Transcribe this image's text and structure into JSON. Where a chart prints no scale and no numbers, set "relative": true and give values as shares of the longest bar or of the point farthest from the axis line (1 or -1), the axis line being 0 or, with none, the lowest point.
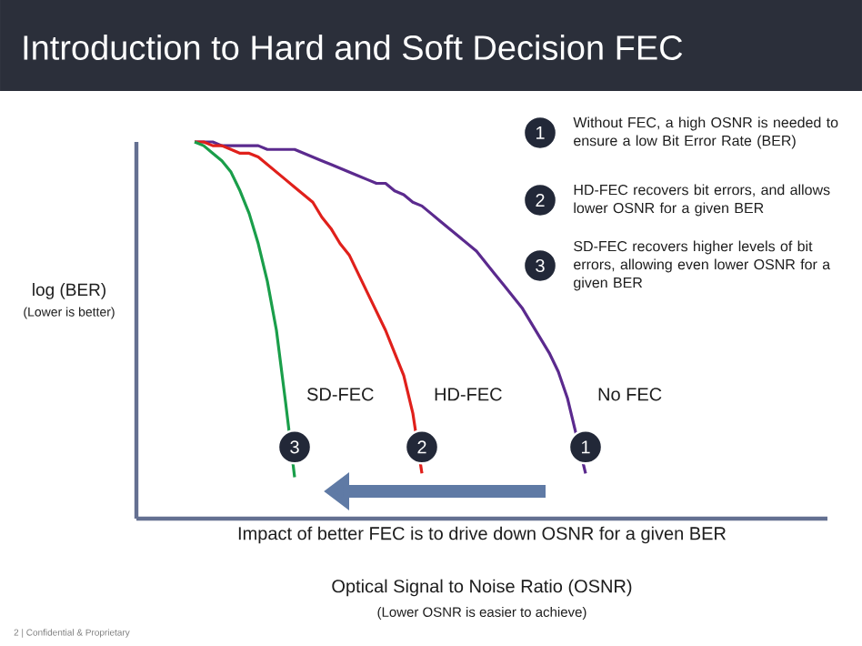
{
  "chart_data": {
    "type": "line",
    "title": "Introduction to Hard and Soft Decision FEC",
    "xlabel": "Optical Signal to Noise Ratio (OSNR)",
    "ylabel": "log (BER)",
    "relative": true,
    "categories": [
      null,
      null,
      null,
      null,
      null,
      null,
      null,
      null,
      null,
      null,
      null,
      null,
      null,
      null,
      null,
      null,
      null,
      null,
      null,
      null,
      null,
      null,
      null,
      null,
      null,
      null,
      null,
      null,
      null,
      null,
      null,
      null,
      null,
      null,
      null,
      null,
      null,
      null,
      null,
      null,
      null,
      null,
      null,
      null
    ],
    "series": [
      {
        "name": "No FEC",
        "color": "#5b2a8e",
        "values": [
          1.0,
          1.0,
          1.0,
          0.99,
          0.99,
          0.99,
          0.99,
          0.99,
          0.98,
          0.98,
          0.98,
          0.98,
          0.97,
          0.96,
          0.95,
          0.94,
          0.93,
          0.92,
          0.91,
          0.9,
          0.89,
          0.89,
          0.87,
          0.86,
          0.84,
          0.83,
          0.81,
          0.79,
          0.77,
          0.75,
          0.73,
          0.71,
          0.68,
          0.65,
          0.62,
          0.59,
          0.56,
          0.52,
          0.48,
          0.44,
          0.39,
          0.32,
          null,
          0.12
        ]
      },
      {
        "name": "HD-FEC",
        "color": "#e0201b",
        "values": [
          1.0,
          1.0,
          0.99,
          0.99,
          0.98,
          0.97,
          0.97,
          0.96,
          0.94,
          0.92,
          0.9,
          0.88,
          0.86,
          0.84,
          0.8,
          0.77,
          0.73,
          0.7,
          0.65,
          0.6,
          0.55,
          0.5,
          0.44,
          0.38,
          0.28,
          0.12,
          null,
          null,
          null,
          null,
          null,
          null,
          null,
          null,
          null,
          null,
          null,
          null,
          null,
          null,
          null,
          null,
          null,
          null
        ]
      },
      {
        "name": "SD-FEC",
        "color": "#1a9e4a",
        "values": [
          1.0,
          0.99,
          0.97,
          0.95,
          0.92,
          0.87,
          0.81,
          0.73,
          0.63,
          0.5,
          0.31,
          0.11,
          null,
          null,
          null,
          null,
          null,
          null,
          null,
          null,
          null,
          null,
          null,
          null,
          null,
          null,
          null,
          null,
          null,
          null,
          null,
          null,
          null,
          null,
          null,
          null,
          null,
          null,
          null,
          null,
          null,
          null,
          null,
          null
        ]
      }
    ],
    "annotations": [
      "1",
      "2",
      "3",
      "Without FEC, a high OSNR is needed to ensure a low Bit Error Rate (BER)",
      "HD-FEC recovers bit errors, and allows lower OSNR for a given BER",
      "SD-FEC recovers higher levels of bit errors, allowing even lower OSNR for a given BER",
      "Impact of better FEC is to drive down OSNR for a given BER",
      "(Lower OSNR is easier to achieve)",
      "(Lower  is better)",
      "2 | Confidential & Proprietary"
    ]
  }
}
